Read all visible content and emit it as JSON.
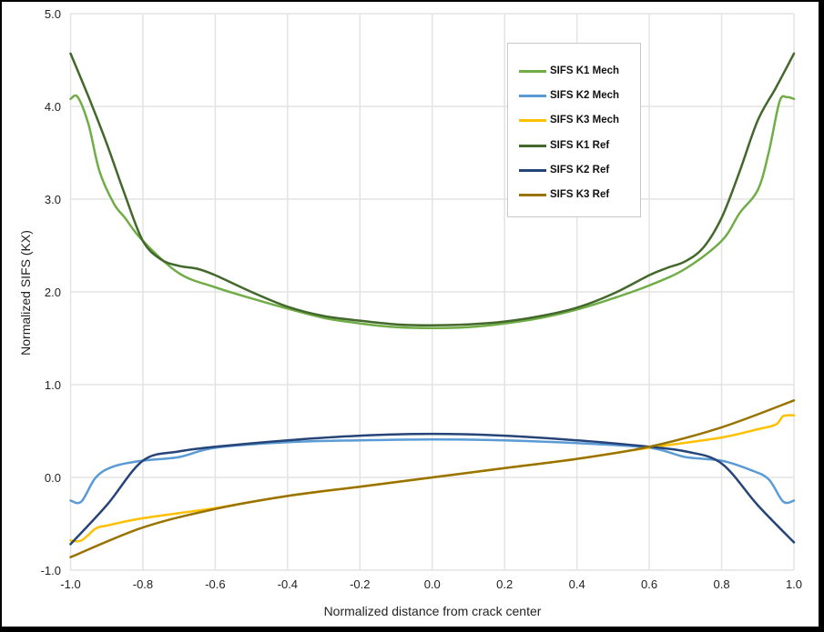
{
  "chart_data": {
    "type": "line",
    "title": "",
    "xlabel": "Normalized distance from crack center",
    "ylabel": "Normalized SIFS (KX)",
    "xlim": [
      -1.0,
      1.0
    ],
    "ylim": [
      -1.0,
      5.0
    ],
    "x_ticks": [
      "-1.0",
      "-0.8",
      "-0.6",
      "-0.4",
      "-0.2",
      "0.0",
      "0.2",
      "0.4",
      "0.6",
      "0.8",
      "1.0"
    ],
    "y_ticks": [
      "-1.0",
      "0.0",
      "1.0",
      "2.0",
      "3.0",
      "4.0",
      "5.0"
    ],
    "grid": true,
    "legend_position": "upper right (inside)",
    "series": [
      {
        "name": "SIFS K1 Mech",
        "color": "#70AD47",
        "x": [
          -1.0,
          -0.98,
          -0.95,
          -0.92,
          -0.88,
          -0.85,
          -0.8,
          -0.7,
          -0.6,
          -0.5,
          -0.4,
          -0.3,
          -0.2,
          -0.1,
          0.0,
          0.1,
          0.2,
          0.3,
          0.4,
          0.5,
          0.6,
          0.7,
          0.8,
          0.85,
          0.9,
          0.93,
          0.96,
          0.98,
          1.0
        ],
        "y": [
          4.08,
          4.1,
          3.8,
          3.3,
          2.95,
          2.8,
          2.55,
          2.2,
          2.05,
          1.93,
          1.82,
          1.72,
          1.66,
          1.62,
          1.61,
          1.62,
          1.66,
          1.72,
          1.81,
          1.93,
          2.07,
          2.25,
          2.55,
          2.85,
          3.1,
          3.5,
          4.05,
          4.1,
          4.08
        ]
      },
      {
        "name": "SIFS K2 Mech",
        "color": "#5B9BD5",
        "x": [
          -1.0,
          -0.97,
          -0.93,
          -0.88,
          -0.8,
          -0.7,
          -0.6,
          -0.4,
          -0.2,
          0.0,
          0.2,
          0.4,
          0.6,
          0.7,
          0.8,
          0.88,
          0.93,
          0.97,
          1.0
        ],
        "y": [
          -0.25,
          -0.26,
          0.0,
          0.12,
          0.18,
          0.22,
          0.32,
          0.38,
          0.4,
          0.41,
          0.4,
          0.37,
          0.32,
          0.22,
          0.18,
          0.08,
          -0.02,
          -0.26,
          -0.25
        ]
      },
      {
        "name": "SIFS K3 Mech",
        "color": "#FFC000",
        "x": [
          -1.0,
          -0.97,
          -0.93,
          -0.9,
          -0.8,
          -0.6,
          -0.4,
          -0.2,
          0.0,
          0.2,
          0.4,
          0.6,
          0.8,
          0.9,
          0.95,
          0.97,
          1.0
        ],
        "y": [
          -0.68,
          -0.68,
          -0.55,
          -0.52,
          -0.44,
          -0.33,
          -0.2,
          -0.1,
          0.0,
          0.1,
          0.2,
          0.32,
          0.43,
          0.52,
          0.57,
          0.66,
          0.67
        ]
      },
      {
        "name": "SIFS K1 Ref",
        "color": "#43682B",
        "x": [
          -1.0,
          -0.95,
          -0.9,
          -0.85,
          -0.8,
          -0.75,
          -0.7,
          -0.65,
          -0.6,
          -0.5,
          -0.4,
          -0.3,
          -0.2,
          -0.1,
          0.0,
          0.1,
          0.2,
          0.3,
          0.4,
          0.5,
          0.6,
          0.65,
          0.7,
          0.75,
          0.8,
          0.85,
          0.9,
          0.95,
          1.0
        ],
        "y": [
          4.57,
          4.1,
          3.6,
          3.05,
          2.55,
          2.35,
          2.28,
          2.25,
          2.18,
          2.0,
          1.84,
          1.74,
          1.69,
          1.65,
          1.64,
          1.65,
          1.68,
          1.74,
          1.83,
          1.98,
          2.18,
          2.26,
          2.33,
          2.48,
          2.8,
          3.3,
          3.85,
          4.2,
          4.57
        ]
      },
      {
        "name": "SIFS K2 Ref",
        "color": "#264478",
        "x": [
          -1.0,
          -0.9,
          -0.8,
          -0.7,
          -0.6,
          -0.4,
          -0.2,
          0.0,
          0.2,
          0.4,
          0.6,
          0.7,
          0.8,
          0.9,
          1.0
        ],
        "y": [
          -0.72,
          -0.3,
          0.18,
          0.28,
          0.33,
          0.4,
          0.45,
          0.47,
          0.45,
          0.4,
          0.33,
          0.28,
          0.15,
          -0.3,
          -0.7
        ]
      },
      {
        "name": "SIFS K3 Ref",
        "color": "#997300",
        "x": [
          -1.0,
          -0.8,
          -0.6,
          -0.4,
          -0.2,
          0.0,
          0.2,
          0.4,
          0.6,
          0.8,
          1.0
        ],
        "y": [
          -0.86,
          -0.54,
          -0.34,
          -0.2,
          -0.1,
          0.0,
          0.1,
          0.2,
          0.33,
          0.54,
          0.83
        ]
      }
    ]
  },
  "legend": {
    "items": [
      {
        "label": "SIFS K1 Mech",
        "color": "#70AD47"
      },
      {
        "label": "SIFS K2 Mech",
        "color": "#5B9BD5"
      },
      {
        "label": "SIFS K3 Mech",
        "color": "#FFC000"
      },
      {
        "label": "SIFS K1 Ref",
        "color": "#43682B"
      },
      {
        "label": "SIFS K2 Ref",
        "color": "#264478"
      },
      {
        "label": "SIFS K3 Ref",
        "color": "#997300"
      }
    ]
  },
  "axes": {
    "x_title": "Normalized distance from crack center",
    "y_title": "Normalized SIFS (KX)"
  }
}
